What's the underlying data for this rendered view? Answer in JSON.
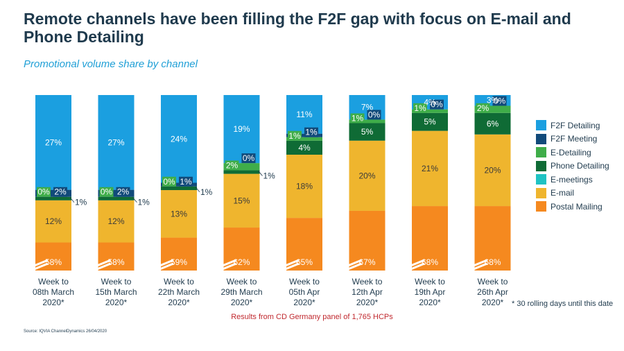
{
  "title": "Remote channels have been filling the F2F gap with focus on E-mail and Phone Detailing",
  "subtitle": "Promotional volume share by channel",
  "footnote": "* 30 rolling days until this date",
  "panel_note": "Results from CD Germany panel of 1,765 HCPs",
  "source": "Source: IQVIA ChannelDynamics 26/04/2020",
  "chart_data": {
    "type": "bar",
    "stacked": true,
    "axis_break": true,
    "categories": [
      [
        "Week to",
        "08th March",
        "2020*"
      ],
      [
        "Week to",
        "15th March",
        "2020*"
      ],
      [
        "Week to",
        "22th March",
        "2020*"
      ],
      [
        "Week to",
        "29th March",
        "2020*"
      ],
      [
        "Week to",
        "05th Apr",
        "2020*"
      ],
      [
        "Week to",
        "12th Apr",
        "2020*"
      ],
      [
        "Week to",
        "19th Apr",
        "2020*"
      ],
      [
        "Week to",
        "26th Apr",
        "2020*"
      ]
    ],
    "series": [
      {
        "name": "Postal Mailing",
        "color": "#f5891f",
        "values": [
          58,
          58,
          59,
          62,
          65,
          67,
          68,
          68
        ]
      },
      {
        "name": "E-mail",
        "color": "#efb52e",
        "values": [
          12,
          12,
          13,
          15,
          18,
          20,
          21,
          20
        ]
      },
      {
        "name": "E-meetings",
        "color": "#1fc3c3",
        "values": [
          0,
          0,
          0,
          0,
          0,
          0,
          0,
          0
        ]
      },
      {
        "name": "Phone Detailing",
        "color": "#0f6b35",
        "values": [
          1,
          1,
          1,
          1,
          4,
          5,
          5,
          6
        ]
      },
      {
        "name": "E-Detailing",
        "color": "#3fad49",
        "values": [
          0,
          0,
          0,
          2,
          1,
          1,
          1,
          2
        ]
      },
      {
        "name": "F2F Meeting",
        "color": "#114a7a",
        "values": [
          2,
          2,
          1,
          0,
          1,
          0,
          0,
          0
        ]
      },
      {
        "name": "F2F Detailing",
        "color": "#1b9fe0",
        "values": [
          27,
          27,
          24,
          19,
          11,
          7,
          4,
          3
        ]
      }
    ],
    "labels": [
      [
        {
          "s": 0,
          "t": "58%"
        },
        {
          "s": 1,
          "t": "12%"
        },
        {
          "s": 4,
          "t": "0%"
        },
        {
          "s": 5,
          "t": "2%"
        },
        {
          "s": 3,
          "t": "1%",
          "outside": true
        },
        {
          "s": 6,
          "t": "27%"
        }
      ],
      [
        {
          "s": 0,
          "t": "58%"
        },
        {
          "s": 1,
          "t": "12%"
        },
        {
          "s": 4,
          "t": "0%"
        },
        {
          "s": 5,
          "t": "2%"
        },
        {
          "s": 3,
          "t": "1%",
          "outside": true
        },
        {
          "s": 6,
          "t": "27%"
        }
      ],
      [
        {
          "s": 0,
          "t": "59%"
        },
        {
          "s": 1,
          "t": "13%"
        },
        {
          "s": 4,
          "t": "0%"
        },
        {
          "s": 5,
          "t": "1%"
        },
        {
          "s": 3,
          "t": "1%",
          "outside": true
        },
        {
          "s": 6,
          "t": "24%"
        }
      ],
      [
        {
          "s": 0,
          "t": "62%"
        },
        {
          "s": 1,
          "t": "15%"
        },
        {
          "s": 4,
          "t": "2%"
        },
        {
          "s": 5,
          "t": "0%"
        },
        {
          "s": 3,
          "t": "1%",
          "outside": true
        },
        {
          "s": 6,
          "t": "19%"
        }
      ],
      [
        {
          "s": 0,
          "t": "65%"
        },
        {
          "s": 1,
          "t": "18%"
        },
        {
          "s": 3,
          "t": "4%"
        },
        {
          "s": 4,
          "t": "1%"
        },
        {
          "s": 5,
          "t": "1%"
        },
        {
          "s": 6,
          "t": "11%"
        }
      ],
      [
        {
          "s": 0,
          "t": "67%"
        },
        {
          "s": 1,
          "t": "20%"
        },
        {
          "s": 3,
          "t": "5%"
        },
        {
          "s": 4,
          "t": "1%"
        },
        {
          "s": 5,
          "t": "0%"
        },
        {
          "s": 6,
          "t": "7%"
        }
      ],
      [
        {
          "s": 0,
          "t": "68%"
        },
        {
          "s": 1,
          "t": "21%"
        },
        {
          "s": 3,
          "t": "5%"
        },
        {
          "s": 4,
          "t": "1%"
        },
        {
          "s": 5,
          "t": "0%"
        },
        {
          "s": 6,
          "t": "4%"
        }
      ],
      [
        {
          "s": 0,
          "t": "68%"
        },
        {
          "s": 1,
          "t": "20%"
        },
        {
          "s": 3,
          "t": "6%"
        },
        {
          "s": 4,
          "t": "2%"
        },
        {
          "s": 5,
          "t": "0%"
        },
        {
          "s": 6,
          "t": "3%"
        }
      ]
    ]
  },
  "legend": {
    "items": [
      {
        "label": "F2F Detailing",
        "color": "#1b9fe0"
      },
      {
        "label": "F2F Meeting",
        "color": "#114a7a"
      },
      {
        "label": "E-Detailing",
        "color": "#3fad49"
      },
      {
        "label": "Phone Detailing",
        "color": "#0f6b35"
      },
      {
        "label": "E-meetings",
        "color": "#1fc3c3"
      },
      {
        "label": "E-mail",
        "color": "#efb52e"
      },
      {
        "label": "Postal Mailing",
        "color": "#f5891f"
      }
    ]
  }
}
